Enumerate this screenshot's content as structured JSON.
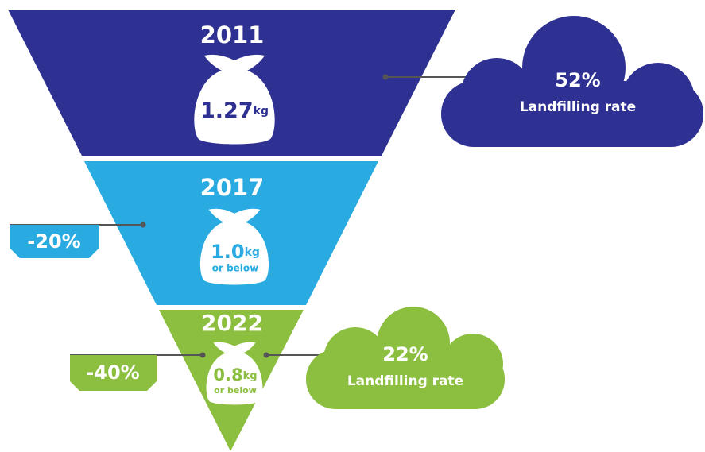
{
  "levels": [
    {
      "year": "2011",
      "amount": "1.27",
      "unit": "kg"
    },
    {
      "year": "2017",
      "amount": "1.0",
      "unit": "kg",
      "note": "or below"
    },
    {
      "year": "2022",
      "amount": "0.8",
      "unit": "kg",
      "note": "or below"
    }
  ],
  "reductions": [
    {
      "label": "-20%"
    },
    {
      "label": "-40%"
    }
  ],
  "clouds": [
    {
      "rate": "52%",
      "label": "Landfilling rate"
    },
    {
      "rate": "22%",
      "label": "Landfilling rate"
    }
  ]
}
